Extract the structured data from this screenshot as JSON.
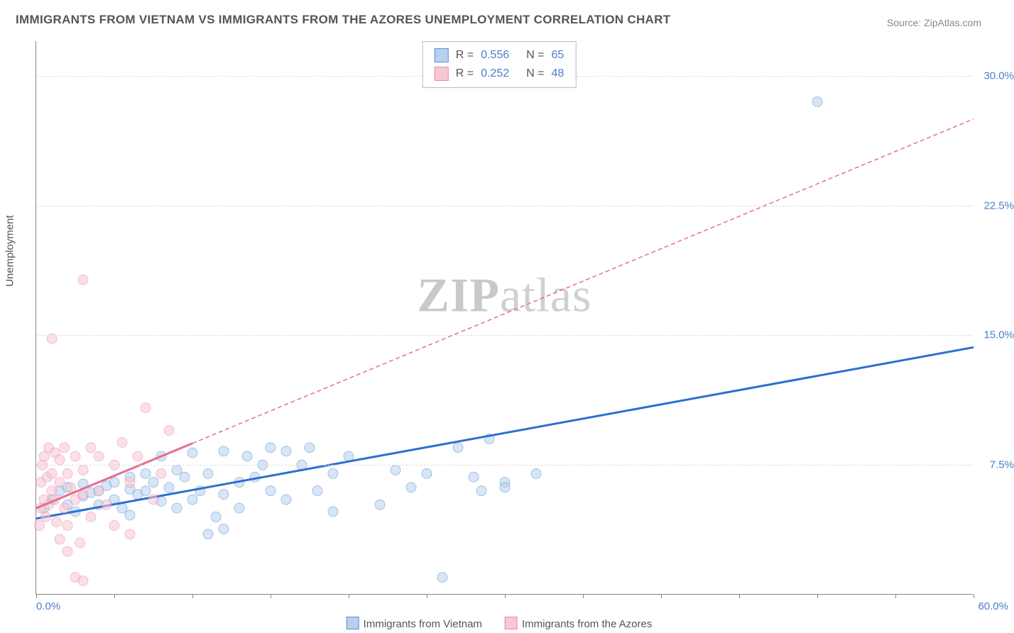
{
  "title": "IMMIGRANTS FROM VIETNAM VS IMMIGRANTS FROM THE AZORES UNEMPLOYMENT CORRELATION CHART",
  "source": "Source: ZipAtlas.com",
  "ylabel": "Unemployment",
  "watermark_bold": "ZIP",
  "watermark_light": "atlas",
  "chart": {
    "type": "scatter-with-regression",
    "background_color": "#ffffff",
    "grid_color": "#dddddd",
    "axis_color": "#888888",
    "tick_label_color": "#4a7ec9",
    "label_color": "#555555",
    "xlim": [
      0,
      60
    ],
    "ylim": [
      0,
      32
    ],
    "xtick_label_min": "0.0%",
    "xtick_label_max": "60.0%",
    "xtick_positions": [
      0,
      5,
      10,
      15,
      20,
      25,
      30,
      35,
      40,
      45,
      50,
      55,
      60
    ],
    "ytick_positions": [
      7.5,
      15.0,
      22.5,
      30.0
    ],
    "ytick_labels": [
      "7.5%",
      "15.0%",
      "22.5%",
      "30.0%"
    ],
    "marker_radius": 7,
    "marker_opacity": 0.55,
    "tick_fontsize": 15,
    "label_fontsize": 15,
    "title_fontsize": 17
  },
  "series": [
    {
      "name": "Immigrants from Vietnam",
      "color_fill": "#b7d0ef",
      "color_stroke": "#5a8fd6",
      "line_color": "#2d6fd0",
      "line_width": 3,
      "line_dash": "none",
      "r_value": "0.556",
      "n_value": "65",
      "regression": {
        "x1": 0,
        "y1": 4.4,
        "x2": 60,
        "y2": 14.3
      },
      "points": [
        [
          0.5,
          5.0
        ],
        [
          1,
          5.5
        ],
        [
          1.5,
          6.0
        ],
        [
          2,
          5.2
        ],
        [
          2,
          6.2
        ],
        [
          2.5,
          4.8
        ],
        [
          3,
          5.7
        ],
        [
          3,
          6.4
        ],
        [
          3.5,
          5.9
        ],
        [
          4,
          6.0
        ],
        [
          4,
          5.2
        ],
        [
          4.5,
          6.3
        ],
        [
          5,
          5.5
        ],
        [
          5,
          6.5
        ],
        [
          5.5,
          5.0
        ],
        [
          6,
          6.1
        ],
        [
          6,
          6.8
        ],
        [
          6.5,
          5.8
        ],
        [
          7,
          6.0
        ],
        [
          7,
          7.0
        ],
        [
          7.5,
          6.5
        ],
        [
          8,
          5.4
        ],
        [
          8,
          8.0
        ],
        [
          8.5,
          6.2
        ],
        [
          9,
          5.0
        ],
        [
          9,
          7.2
        ],
        [
          9.5,
          6.8
        ],
        [
          10,
          5.5
        ],
        [
          10,
          8.2
        ],
        [
          10.5,
          6.0
        ],
        [
          11,
          7.0
        ],
        [
          11.5,
          4.5
        ],
        [
          12,
          8.3
        ],
        [
          12,
          5.8
        ],
        [
          12,
          3.8
        ],
        [
          13,
          6.5
        ],
        [
          13.5,
          8.0
        ],
        [
          14,
          6.8
        ],
        [
          15,
          8.5
        ],
        [
          15,
          6.0
        ],
        [
          16,
          8.3
        ],
        [
          16,
          5.5
        ],
        [
          17,
          7.5
        ],
        [
          17.5,
          8.5
        ],
        [
          18,
          6.0
        ],
        [
          19,
          4.8
        ],
        [
          19,
          7.0
        ],
        [
          20,
          8.0
        ],
        [
          22,
          5.2
        ],
        [
          23,
          7.2
        ],
        [
          24,
          6.2
        ],
        [
          25,
          7.0
        ],
        [
          26,
          1.0
        ],
        [
          27,
          8.5
        ],
        [
          28,
          6.8
        ],
        [
          28.5,
          6.0
        ],
        [
          29,
          9.0
        ],
        [
          30,
          6.5
        ],
        [
          32,
          7.0
        ],
        [
          30,
          6.2
        ],
        [
          50,
          28.5
        ],
        [
          14.5,
          7.5
        ],
        [
          13,
          5.0
        ],
        [
          11,
          3.5
        ],
        [
          6,
          4.6
        ]
      ]
    },
    {
      "name": "Immigrants from the Azores",
      "color_fill": "#f7c7d3",
      "color_stroke": "#e98aa3",
      "line_color": "#e86b8f",
      "line_width": 3,
      "line_dash": "6 4",
      "r_value": "0.252",
      "n_value": "48",
      "regression_solid_until_x": 10,
      "regression": {
        "x1": 0,
        "y1": 5.0,
        "x2": 60,
        "y2": 27.5
      },
      "points": [
        [
          0.2,
          4.0
        ],
        [
          0.3,
          5.0
        ],
        [
          0.3,
          6.5
        ],
        [
          0.4,
          7.5
        ],
        [
          0.5,
          5.5
        ],
        [
          0.5,
          8.0
        ],
        [
          0.6,
          4.5
        ],
        [
          0.7,
          6.8
        ],
        [
          0.8,
          5.2
        ],
        [
          0.8,
          8.5
        ],
        [
          1.0,
          6.0
        ],
        [
          1.0,
          7.0
        ],
        [
          1.0,
          14.8
        ],
        [
          1.2,
          5.5
        ],
        [
          1.2,
          8.2
        ],
        [
          1.3,
          4.2
        ],
        [
          1.5,
          6.5
        ],
        [
          1.5,
          7.8
        ],
        [
          1.8,
          5.0
        ],
        [
          1.8,
          8.5
        ],
        [
          2.0,
          7.0
        ],
        [
          2.0,
          4.0
        ],
        [
          2.2,
          6.2
        ],
        [
          2.5,
          8.0
        ],
        [
          2.5,
          5.5
        ],
        [
          2.8,
          3.0
        ],
        [
          3.0,
          7.2
        ],
        [
          3.0,
          5.8
        ],
        [
          3.5,
          8.5
        ],
        [
          3.5,
          4.5
        ],
        [
          3,
          18.2
        ],
        [
          4.0,
          6.0
        ],
        [
          4.0,
          8.0
        ],
        [
          4.5,
          5.2
        ],
        [
          5.0,
          7.5
        ],
        [
          5.0,
          4.0
        ],
        [
          5.5,
          8.8
        ],
        [
          6.0,
          6.5
        ],
        [
          6.0,
          3.5
        ],
        [
          6.5,
          8.0
        ],
        [
          7.0,
          10.8
        ],
        [
          7.5,
          5.5
        ],
        [
          8.0,
          7.0
        ],
        [
          8.5,
          9.5
        ],
        [
          2.5,
          1.0
        ],
        [
          3.0,
          0.8
        ],
        [
          1.5,
          3.2
        ],
        [
          2.0,
          2.5
        ]
      ]
    }
  ],
  "legend_bottom": {
    "items": [
      {
        "label": "Immigrants from Vietnam",
        "fill": "#b7d0ef",
        "stroke": "#5a8fd6"
      },
      {
        "label": "Immigrants from the Azores",
        "fill": "#f7c7d3",
        "stroke": "#e98aa3"
      }
    ]
  }
}
